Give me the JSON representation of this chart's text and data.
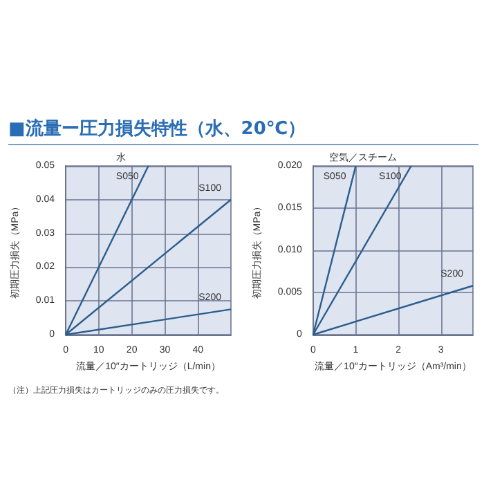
{
  "chart_data": [
    {
      "type": "line",
      "title": "■流量ー圧力損失特性（水、20℃）",
      "subtitle": "水",
      "xlabel": "流量／10″カートリッジ（L/min）",
      "ylabel": "初期圧力損失（MPa）",
      "annotations": [
        "（注）上記圧力損失はカートリッジのみの圧力損失です。"
      ],
      "xlim": [
        0,
        50
      ],
      "xticks": [
        0,
        10,
        20,
        30,
        40
      ],
      "ylim": [
        0,
        0.05
      ],
      "yticks": [
        0,
        0.01,
        0.02,
        0.03,
        0.04,
        0.05
      ],
      "grid": true,
      "marker": "none",
      "line_style": "solid",
      "series": [
        {
          "name": "S050",
          "color": "#2b5d8c",
          "x": [
            0,
            25
          ],
          "values": [
            0,
            0.05
          ]
        },
        {
          "name": "S100",
          "color": "#2b5d8c",
          "x": [
            0,
            50
          ],
          "values": [
            0,
            0.04
          ]
        },
        {
          "name": "S200",
          "color": "#2b5d8c",
          "x": [
            0,
            50
          ],
          "values": [
            0,
            0.0075
          ]
        }
      ]
    },
    {
      "type": "line",
      "title": "空気／スチーム",
      "xlabel": "流量／10″カートリッジ（Am³/min）",
      "ylabel": "初期圧力損失（MPa）",
      "xlim": [
        0,
        3.75
      ],
      "xticks": [
        0,
        1,
        2,
        3
      ],
      "ylim": [
        0,
        0.02
      ],
      "yticks": [
        0,
        {
          "value": 0.005,
          "label": "0.005"
        },
        {
          "value": 0.01,
          "label": "0.010"
        },
        {
          "value": 0.015,
          "label": "0.015"
        },
        {
          "value": 0.02,
          "label": "0.020"
        }
      ],
      "grid": true,
      "marker": "none",
      "line_style": "solid",
      "series": [
        {
          "name": "S050",
          "color": "#2b5d8c",
          "x": [
            0,
            1
          ],
          "values": [
            0,
            0.02
          ]
        },
        {
          "name": "S100",
          "color": "#2b5d8c",
          "x": [
            0,
            2.3
          ],
          "values": [
            0,
            0.02
          ]
        },
        {
          "name": "S200",
          "color": "#2b5d8c",
          "x": [
            0,
            3.75
          ],
          "values": [
            0,
            0.0058
          ]
        }
      ]
    }
  ]
}
